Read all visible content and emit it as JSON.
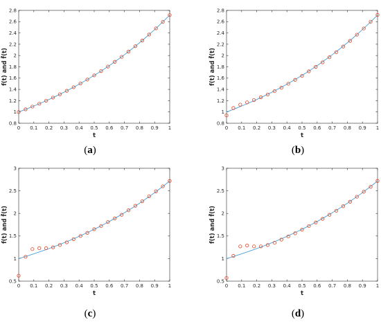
{
  "chart_data": [
    {
      "type": "line",
      "panel": "a",
      "caption": "(a)",
      "xlabel": "t",
      "ylabel": "f(t) and f̂(t)",
      "xlim": [
        0,
        1
      ],
      "ylim": [
        0.8,
        2.8
      ],
      "xticks": [
        "0",
        "0.1",
        "0.2",
        "0.3",
        "0.4",
        "0.5",
        "0.6",
        "0.7",
        "0.8",
        "0.9",
        "1"
      ],
      "yticks": [
        "0.8",
        "1",
        "1.2",
        "1.4",
        "1.6",
        "1.8",
        "2",
        "2.2",
        "2.4",
        "2.6",
        "2.8"
      ],
      "grid": false,
      "series": [
        {
          "kind": "line",
          "color": "#4a9fd4",
          "x": [
            0,
            0.025,
            0.05,
            0.075,
            0.1,
            0.125,
            0.15,
            0.175,
            0.2,
            0.225,
            0.25,
            0.275,
            0.3,
            0.325,
            0.35,
            0.375,
            0.4,
            0.425,
            0.45,
            0.475,
            0.5,
            0.525,
            0.55,
            0.575,
            0.6,
            0.625,
            0.65,
            0.675,
            0.7,
            0.725,
            0.75,
            0.775,
            0.8,
            0.825,
            0.85,
            0.875,
            0.9,
            0.925,
            0.95,
            0.975,
            1
          ],
          "y": [
            1,
            1.025,
            1.051,
            1.078,
            1.105,
            1.133,
            1.162,
            1.191,
            1.221,
            1.252,
            1.284,
            1.317,
            1.35,
            1.384,
            1.419,
            1.455,
            1.492,
            1.53,
            1.568,
            1.608,
            1.649,
            1.69,
            1.733,
            1.777,
            1.822,
            1.868,
            1.916,
            1.964,
            2.014,
            2.065,
            2.117,
            2.171,
            2.226,
            2.282,
            2.34,
            2.399,
            2.46,
            2.522,
            2.586,
            2.651,
            2.718
          ]
        },
        {
          "kind": "markers",
          "color": "#e2431e",
          "x": [
            0,
            0.0455,
            0.0909,
            0.1364,
            0.1818,
            0.2273,
            0.2727,
            0.3182,
            0.3636,
            0.4091,
            0.4545,
            0.5,
            0.5455,
            0.5909,
            0.6364,
            0.6818,
            0.7273,
            0.7727,
            0.8182,
            0.8636,
            0.9091,
            0.9545,
            1
          ],
          "y": [
            1.0,
            1.047,
            1.095,
            1.146,
            1.199,
            1.255,
            1.314,
            1.375,
            1.439,
            1.505,
            1.575,
            1.649,
            1.725,
            1.805,
            1.889,
            1.977,
            2.07,
            2.166,
            2.266,
            2.372,
            2.482,
            2.597,
            2.718
          ]
        }
      ]
    },
    {
      "type": "line",
      "panel": "b",
      "caption": "(b)",
      "xlabel": "t",
      "ylabel": "f(t) and f̂(t)",
      "xlim": [
        0,
        1
      ],
      "ylim": [
        0.8,
        2.8
      ],
      "xticks": [
        "0",
        "0.1",
        "0.2",
        "0.3",
        "0.4",
        "0.5",
        "0.6",
        "0.7",
        "0.8",
        "0.9",
        "1"
      ],
      "yticks": [
        "0.8",
        "1",
        "1.2",
        "1.4",
        "1.6",
        "1.8",
        "2",
        "2.2",
        "2.4",
        "2.6",
        "2.8"
      ],
      "grid": false,
      "series": [
        {
          "kind": "line",
          "color": "#4a9fd4",
          "x": [
            0,
            0.025,
            0.05,
            0.075,
            0.1,
            0.125,
            0.15,
            0.175,
            0.2,
            0.225,
            0.25,
            0.275,
            0.3,
            0.325,
            0.35,
            0.375,
            0.4,
            0.425,
            0.45,
            0.475,
            0.5,
            0.525,
            0.55,
            0.575,
            0.6,
            0.625,
            0.65,
            0.675,
            0.7,
            0.725,
            0.75,
            0.775,
            0.8,
            0.825,
            0.85,
            0.875,
            0.9,
            0.925,
            0.95,
            0.975,
            1
          ],
          "y": [
            1,
            1.025,
            1.051,
            1.078,
            1.105,
            1.133,
            1.162,
            1.191,
            1.221,
            1.252,
            1.284,
            1.317,
            1.35,
            1.384,
            1.419,
            1.455,
            1.492,
            1.53,
            1.568,
            1.608,
            1.649,
            1.69,
            1.733,
            1.777,
            1.822,
            1.868,
            1.916,
            1.964,
            2.014,
            2.065,
            2.117,
            2.171,
            2.226,
            2.282,
            2.34,
            2.399,
            2.46,
            2.522,
            2.586,
            2.651,
            2.718
          ]
        },
        {
          "kind": "markers",
          "color": "#e2431e",
          "x": [
            0,
            0.0455,
            0.0909,
            0.1364,
            0.1818,
            0.2273,
            0.2727,
            0.3182,
            0.3636,
            0.4091,
            0.4545,
            0.5,
            0.5455,
            0.5909,
            0.6364,
            0.6818,
            0.7273,
            0.7727,
            0.8182,
            0.8636,
            0.9091,
            0.9545,
            1
          ],
          "y": [
            0.94,
            1.07,
            1.13,
            1.17,
            1.21,
            1.26,
            1.31,
            1.37,
            1.43,
            1.5,
            1.57,
            1.64,
            1.72,
            1.8,
            1.88,
            1.97,
            2.06,
            2.16,
            2.26,
            2.37,
            2.48,
            2.6,
            2.72
          ]
        }
      ]
    },
    {
      "type": "line",
      "panel": "c",
      "caption": "(c)",
      "xlabel": "t",
      "ylabel": "f(t) and f̂(t)",
      "xlim": [
        0,
        1
      ],
      "ylim": [
        0.5,
        3
      ],
      "xticks": [
        "0",
        "0.1",
        "0.2",
        "0.3",
        "0.4",
        "0.5",
        "0.6",
        "0.7",
        "0.8",
        "0.9",
        "1"
      ],
      "yticks": [
        "0.5",
        "1",
        "1.5",
        "2",
        "2.5",
        "3"
      ],
      "grid": false,
      "series": [
        {
          "kind": "line",
          "color": "#4a9fd4",
          "x": [
            0,
            0.025,
            0.05,
            0.075,
            0.1,
            0.125,
            0.15,
            0.175,
            0.2,
            0.225,
            0.25,
            0.275,
            0.3,
            0.325,
            0.35,
            0.375,
            0.4,
            0.425,
            0.45,
            0.475,
            0.5,
            0.525,
            0.55,
            0.575,
            0.6,
            0.625,
            0.65,
            0.675,
            0.7,
            0.725,
            0.75,
            0.775,
            0.8,
            0.825,
            0.85,
            0.875,
            0.9,
            0.925,
            0.95,
            0.975,
            1
          ],
          "y": [
            1,
            1.025,
            1.051,
            1.078,
            1.105,
            1.133,
            1.162,
            1.191,
            1.221,
            1.252,
            1.284,
            1.317,
            1.35,
            1.384,
            1.419,
            1.455,
            1.492,
            1.53,
            1.568,
            1.608,
            1.649,
            1.69,
            1.733,
            1.777,
            1.822,
            1.868,
            1.916,
            1.964,
            2.014,
            2.065,
            2.117,
            2.171,
            2.226,
            2.282,
            2.34,
            2.399,
            2.46,
            2.522,
            2.586,
            2.651,
            2.718
          ]
        },
        {
          "kind": "markers",
          "color": "#e2431e",
          "x": [
            0,
            0.0455,
            0.0909,
            0.1364,
            0.1818,
            0.2273,
            0.2727,
            0.3182,
            0.3636,
            0.4091,
            0.4545,
            0.5,
            0.5455,
            0.5909,
            0.6364,
            0.6818,
            0.7273,
            0.7727,
            0.8182,
            0.8636,
            0.9091,
            0.9545,
            1
          ],
          "y": [
            0.62,
            1.04,
            1.21,
            1.23,
            1.23,
            1.25,
            1.3,
            1.36,
            1.43,
            1.5,
            1.57,
            1.65,
            1.72,
            1.81,
            1.89,
            1.97,
            2.07,
            2.17,
            2.27,
            2.38,
            2.49,
            2.6,
            2.72
          ]
        }
      ]
    },
    {
      "type": "line",
      "panel": "d",
      "caption": "(d)",
      "xlabel": "t",
      "ylabel": "f(t) and f̂(t)",
      "xlim": [
        0,
        1
      ],
      "ylim": [
        0.5,
        3
      ],
      "xticks": [
        "0",
        "0.1",
        "0.2",
        "0.3",
        "0.4",
        "0.5",
        "0.6",
        "0.7",
        "0.8",
        "0.9",
        "1"
      ],
      "yticks": [
        "0.5",
        "1",
        "1.5",
        "2",
        "2.5",
        "3"
      ],
      "grid": false,
      "series": [
        {
          "kind": "line",
          "color": "#4a9fd4",
          "x": [
            0,
            0.025,
            0.05,
            0.075,
            0.1,
            0.125,
            0.15,
            0.175,
            0.2,
            0.225,
            0.25,
            0.275,
            0.3,
            0.325,
            0.35,
            0.375,
            0.4,
            0.425,
            0.45,
            0.475,
            0.5,
            0.525,
            0.55,
            0.575,
            0.6,
            0.625,
            0.65,
            0.675,
            0.7,
            0.725,
            0.75,
            0.775,
            0.8,
            0.825,
            0.85,
            0.875,
            0.9,
            0.925,
            0.95,
            0.975,
            1
          ],
          "y": [
            1,
            1.025,
            1.051,
            1.078,
            1.105,
            1.133,
            1.162,
            1.191,
            1.221,
            1.252,
            1.284,
            1.317,
            1.35,
            1.384,
            1.419,
            1.455,
            1.492,
            1.53,
            1.568,
            1.608,
            1.649,
            1.69,
            1.733,
            1.777,
            1.822,
            1.868,
            1.916,
            1.964,
            2.014,
            2.065,
            2.117,
            2.171,
            2.226,
            2.282,
            2.34,
            2.399,
            2.46,
            2.522,
            2.586,
            2.651,
            2.718
          ]
        },
        {
          "kind": "markers",
          "color": "#e2431e",
          "x": [
            0,
            0.0455,
            0.0909,
            0.1364,
            0.1818,
            0.2273,
            0.2727,
            0.3182,
            0.3636,
            0.4091,
            0.4545,
            0.5,
            0.5455,
            0.5909,
            0.6364,
            0.6818,
            0.7273,
            0.7727,
            0.8182,
            0.8636,
            0.9091,
            0.9545,
            1
          ],
          "y": [
            0.57,
            1.06,
            1.27,
            1.29,
            1.27,
            1.27,
            1.3,
            1.35,
            1.42,
            1.49,
            1.56,
            1.64,
            1.72,
            1.8,
            1.88,
            1.97,
            2.06,
            2.16,
            2.26,
            2.37,
            2.48,
            2.59,
            2.72
          ]
        }
      ]
    }
  ]
}
